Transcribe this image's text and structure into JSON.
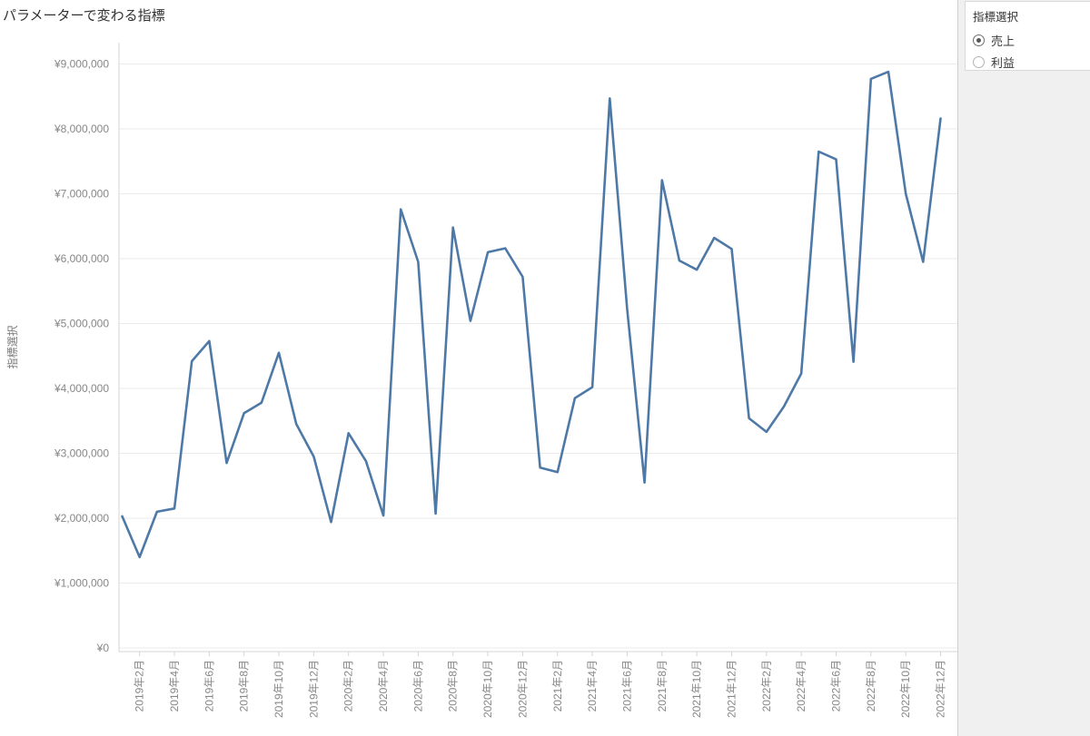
{
  "title": "パラメーターで変わる指標",
  "y_axis": {
    "title": "指標選択",
    "tick_labels": [
      "¥0",
      "¥1,000,000",
      "¥2,000,000",
      "¥3,000,000",
      "¥4,000,000",
      "¥5,000,000",
      "¥6,000,000",
      "¥7,000,000",
      "¥8,000,000",
      "¥9,000,000"
    ]
  },
  "x_axis": {
    "tick_labels": [
      "2019年2月",
      "2019年4月",
      "2019年6月",
      "2019年8月",
      "2019年10月",
      "2019年12月",
      "2020年2月",
      "2020年4月",
      "2020年6月",
      "2020年8月",
      "2020年10月",
      "2020年12月",
      "2021年2月",
      "2021年4月",
      "2021年6月",
      "2021年8月",
      "2021年10月",
      "2021年12月",
      "2022年2月",
      "2022年4月",
      "2022年6月",
      "2022年8月",
      "2022年10月",
      "2022年12月"
    ]
  },
  "parameter_panel": {
    "title": "指標選択",
    "options": [
      {
        "label": "売上",
        "selected": true
      },
      {
        "label": "利益",
        "selected": false
      }
    ]
  },
  "chart_data": {
    "type": "line",
    "title": "パラメーターで変わる指標",
    "ylabel": "指標選択",
    "x": [
      "2019年1月",
      "2019年2月",
      "2019年3月",
      "2019年4月",
      "2019年5月",
      "2019年6月",
      "2019年7月",
      "2019年8月",
      "2019年9月",
      "2019年10月",
      "2019年11月",
      "2019年12月",
      "2020年1月",
      "2020年2月",
      "2020年3月",
      "2020年4月",
      "2020年5月",
      "2020年6月",
      "2020年7月",
      "2020年8月",
      "2020年9月",
      "2020年10月",
      "2020年11月",
      "2020年12月",
      "2021年1月",
      "2021年2月",
      "2021年3月",
      "2021年4月",
      "2021年5月",
      "2021年6月",
      "2021年7月",
      "2021年8月",
      "2021年9月",
      "2021年10月",
      "2021年11月",
      "2021年12月",
      "2022年1月",
      "2022年2月",
      "2022年3月",
      "2022年4月",
      "2022年5月",
      "2022年6月",
      "2022年7月",
      "2022年8月",
      "2022年9月",
      "2022年10月",
      "2022年11月",
      "2022年12月"
    ],
    "series": [
      {
        "name": "売上",
        "values": [
          2030000,
          1400000,
          2100000,
          2150000,
          4420000,
          4730000,
          2850000,
          3620000,
          3780000,
          4550000,
          3450000,
          2950000,
          1940000,
          3310000,
          2880000,
          2040000,
          6760000,
          5950000,
          2070000,
          6480000,
          5040000,
          6100000,
          6160000,
          5720000,
          2780000,
          2710000,
          3850000,
          4020000,
          8470000,
          5230000,
          2550000,
          7210000,
          5970000,
          5830000,
          6320000,
          6150000,
          3540000,
          3330000,
          3720000,
          4230000,
          7650000,
          7530000,
          4410000,
          8770000,
          8880000,
          7000000,
          5950000,
          8160000
        ]
      }
    ],
    "ylim": [
      0,
      9350000
    ],
    "grid": true,
    "legend_position": "none",
    "line_color": "#4e79a7",
    "tick_interval_months": 2
  },
  "colors": {
    "line": "#4e79a7",
    "gridline": "#ebebeb",
    "axis": "#d4d4d4",
    "tick_label": "#878787",
    "title_text": "#323232",
    "sidebar_bg": "#f0f0f0",
    "card_border": "#d9d9d9",
    "divider": "#cfcfcf"
  }
}
